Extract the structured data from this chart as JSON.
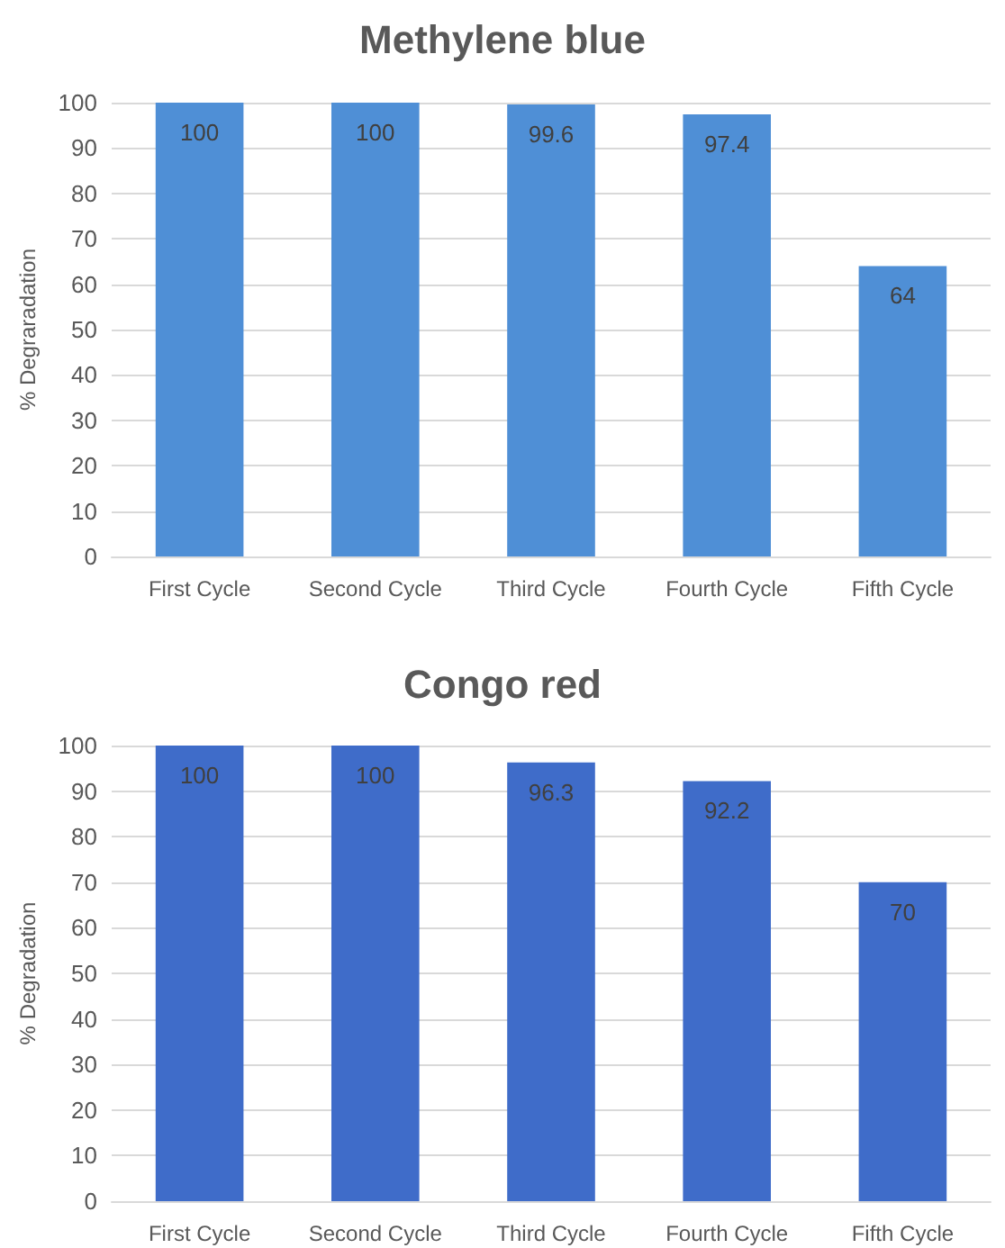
{
  "chart_data": [
    {
      "type": "bar",
      "title": "Methylene blue",
      "ylabel": "% Degraradation",
      "categories": [
        "First Cycle",
        "Second Cycle",
        "Third Cycle",
        "Fourth Cycle",
        "Fifth Cycle"
      ],
      "values": [
        100,
        100,
        99.6,
        97.4,
        64
      ],
      "color": "#4f8fd6",
      "ylim": [
        0,
        100
      ],
      "yticks": [
        0,
        10,
        20,
        30,
        40,
        50,
        60,
        70,
        80,
        90,
        100
      ],
      "grid": "y",
      "data_labels": true
    },
    {
      "type": "bar",
      "title": "Congo red",
      "ylabel": "% Degradation",
      "categories": [
        "First Cycle",
        "Second Cycle",
        "Third Cycle",
        "Fourth Cycle",
        "Fifth Cycle"
      ],
      "values": [
        100,
        100,
        96.3,
        92.2,
        70
      ],
      "color": "#3f6cc9",
      "ylim": [
        0,
        100
      ],
      "yticks": [
        0,
        10,
        20,
        30,
        40,
        50,
        60,
        70,
        80,
        90,
        100
      ],
      "grid": "y",
      "data_labels": true
    }
  ]
}
